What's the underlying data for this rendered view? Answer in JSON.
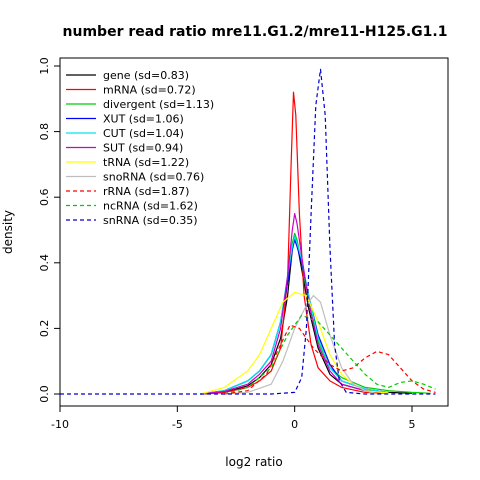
{
  "chart_data": {
    "type": "line",
    "title": "number read ratio mre11.G1.2/mre11-H125.G1.1",
    "xlabel": "log2 ratio",
    "ylabel": "density",
    "xlim": [
      -10,
      6.2
    ],
    "ylim": [
      0,
      1.0
    ],
    "x_ticks": [
      -10,
      -5,
      0,
      5
    ],
    "y_ticks": [
      0.0,
      0.2,
      0.4,
      0.6,
      0.8,
      1.0
    ],
    "grid": false,
    "legend_position": "top-left",
    "series": [
      {
        "name": "gene (sd=0.83)",
        "color": "#000000",
        "dash": "solid",
        "points": [
          [
            -4,
            0
          ],
          [
            -3,
            0.005
          ],
          [
            -2,
            0.025
          ],
          [
            -1.5,
            0.05
          ],
          [
            -1,
            0.09
          ],
          [
            -0.6,
            0.17
          ],
          [
            -0.3,
            0.3
          ],
          [
            -0.1,
            0.44
          ],
          [
            0,
            0.48
          ],
          [
            0.1,
            0.46
          ],
          [
            0.3,
            0.38
          ],
          [
            0.6,
            0.26
          ],
          [
            1,
            0.14
          ],
          [
            1.5,
            0.06
          ],
          [
            2,
            0.03
          ],
          [
            3,
            0.01
          ],
          [
            4,
            0.005
          ],
          [
            5,
            0.002
          ]
        ]
      },
      {
        "name": "mRNA (sd=0.72)",
        "color": "#ff0000",
        "dash": "solid",
        "points": [
          [
            -4,
            0
          ],
          [
            -3,
            0.005
          ],
          [
            -2,
            0.02
          ],
          [
            -1.5,
            0.04
          ],
          [
            -1,
            0.07
          ],
          [
            -0.6,
            0.14
          ],
          [
            -0.3,
            0.35
          ],
          [
            -0.15,
            0.7
          ],
          [
            -0.05,
            0.92
          ],
          [
            0.05,
            0.85
          ],
          [
            0.2,
            0.55
          ],
          [
            0.4,
            0.3
          ],
          [
            0.7,
            0.15
          ],
          [
            1,
            0.08
          ],
          [
            1.5,
            0.04
          ],
          [
            2,
            0.02
          ],
          [
            3,
            0.005
          ],
          [
            4,
            0.002
          ]
        ]
      },
      {
        "name": "divergent (sd=1.13)",
        "color": "#00cd00",
        "dash": "solid",
        "points": [
          [
            -4,
            0
          ],
          [
            -3,
            0.01
          ],
          [
            -2,
            0.04
          ],
          [
            -1.5,
            0.07
          ],
          [
            -1,
            0.12
          ],
          [
            -0.6,
            0.22
          ],
          [
            -0.3,
            0.35
          ],
          [
            -0.1,
            0.46
          ],
          [
            0,
            0.49
          ],
          [
            0.1,
            0.47
          ],
          [
            0.3,
            0.4
          ],
          [
            0.6,
            0.28
          ],
          [
            1,
            0.16
          ],
          [
            1.5,
            0.08
          ],
          [
            2,
            0.05
          ],
          [
            3,
            0.02
          ],
          [
            4,
            0.01
          ],
          [
            5,
            0.005
          ],
          [
            5.8,
            0.002
          ]
        ]
      },
      {
        "name": "XUT (sd=1.06)",
        "color": "#0000ff",
        "dash": "solid",
        "points": [
          [
            -4,
            0
          ],
          [
            -3,
            0.01
          ],
          [
            -2,
            0.04
          ],
          [
            -1.5,
            0.07
          ],
          [
            -1,
            0.12
          ],
          [
            -0.6,
            0.22
          ],
          [
            -0.3,
            0.34
          ],
          [
            -0.1,
            0.44
          ],
          [
            0,
            0.47
          ],
          [
            0.1,
            0.45
          ],
          [
            0.3,
            0.4
          ],
          [
            0.6,
            0.3
          ],
          [
            1,
            0.18
          ],
          [
            1.5,
            0.09
          ],
          [
            2,
            0.04
          ],
          [
            3,
            0.015
          ],
          [
            4,
            0.005
          ]
        ]
      },
      {
        "name": "CUT (sd=1.04)",
        "color": "#00e5ee",
        "dash": "solid",
        "points": [
          [
            -4,
            0
          ],
          [
            -3,
            0.01
          ],
          [
            -2,
            0.04
          ],
          [
            -1.5,
            0.07
          ],
          [
            -1,
            0.12
          ],
          [
            -0.6,
            0.22
          ],
          [
            -0.3,
            0.36
          ],
          [
            -0.1,
            0.45
          ],
          [
            0,
            0.48
          ],
          [
            0.1,
            0.46
          ],
          [
            0.3,
            0.41
          ],
          [
            0.6,
            0.3
          ],
          [
            1,
            0.17
          ],
          [
            1.5,
            0.08
          ],
          [
            2,
            0.04
          ],
          [
            3,
            0.015
          ],
          [
            4,
            0.005
          ]
        ]
      },
      {
        "name": "SUT (sd=0.94)",
        "color": "#cc00cc",
        "dash": "solid",
        "points": [
          [
            -4,
            0
          ],
          [
            -3,
            0.008
          ],
          [
            -2,
            0.03
          ],
          [
            -1.5,
            0.06
          ],
          [
            -1,
            0.1
          ],
          [
            -0.6,
            0.2
          ],
          [
            -0.3,
            0.36
          ],
          [
            -0.1,
            0.5
          ],
          [
            0,
            0.55
          ],
          [
            0.1,
            0.52
          ],
          [
            0.3,
            0.42
          ],
          [
            0.6,
            0.28
          ],
          [
            1,
            0.15
          ],
          [
            1.5,
            0.07
          ],
          [
            2,
            0.03
          ],
          [
            3,
            0.01
          ],
          [
            4,
            0.003
          ]
        ]
      },
      {
        "name": "tRNA (sd=1.22)",
        "color": "#ffff00",
        "dash": "solid",
        "points": [
          [
            -4,
            0
          ],
          [
            -3,
            0.02
          ],
          [
            -2,
            0.07
          ],
          [
            -1.5,
            0.12
          ],
          [
            -1,
            0.2
          ],
          [
            -0.5,
            0.28
          ],
          [
            0,
            0.31
          ],
          [
            0.5,
            0.3
          ],
          [
            1,
            0.22
          ],
          [
            1.5,
            0.12
          ],
          [
            2,
            0.06
          ],
          [
            2.5,
            0.03
          ],
          [
            3,
            0.01
          ],
          [
            4,
            0.003
          ]
        ]
      },
      {
        "name": "snoRNA (sd=0.76)",
        "color": "#bebebe",
        "dash": "solid",
        "points": [
          [
            -3,
            0
          ],
          [
            -2,
            0.005
          ],
          [
            -1,
            0.03
          ],
          [
            -0.5,
            0.1
          ],
          [
            0,
            0.2
          ],
          [
            0.5,
            0.27
          ],
          [
            0.8,
            0.3
          ],
          [
            1.1,
            0.28
          ],
          [
            1.5,
            0.18
          ],
          [
            2,
            0.08
          ],
          [
            2.5,
            0.03
          ],
          [
            3,
            0.01
          ],
          [
            3.5,
            0
          ]
        ]
      },
      {
        "name": "rRNA (sd=1.87)",
        "color": "#ff0000",
        "dash": "dashed",
        "points": [
          [
            -3,
            0
          ],
          [
            -2,
            0.01
          ],
          [
            -1.2,
            0.06
          ],
          [
            -0.6,
            0.15
          ],
          [
            -0.2,
            0.21
          ],
          [
            0.2,
            0.2
          ],
          [
            0.8,
            0.14
          ],
          [
            1.5,
            0.09
          ],
          [
            2,
            0.07
          ],
          [
            2.5,
            0.08
          ],
          [
            3,
            0.11
          ],
          [
            3.5,
            0.13
          ],
          [
            4,
            0.12
          ],
          [
            4.5,
            0.08
          ],
          [
            5,
            0.04
          ],
          [
            5.5,
            0.015
          ],
          [
            6,
            0.005
          ]
        ]
      },
      {
        "name": "ncRNA (sd=1.62)",
        "color": "#00cd00",
        "dash": "dashed",
        "points": [
          [
            -3,
            0
          ],
          [
            -2,
            0.02
          ],
          [
            -1,
            0.08
          ],
          [
            -0.3,
            0.18
          ],
          [
            0.3,
            0.24
          ],
          [
            1,
            0.22
          ],
          [
            1.5,
            0.18
          ],
          [
            2,
            0.14
          ],
          [
            2.5,
            0.1
          ],
          [
            3,
            0.06
          ],
          [
            3.5,
            0.03
          ],
          [
            4,
            0.02
          ],
          [
            4.5,
            0.035
          ],
          [
            5,
            0.04
          ],
          [
            5.5,
            0.03
          ],
          [
            6,
            0.015
          ]
        ]
      },
      {
        "name": "snRNA (sd=0.35)",
        "color": "#0000cd",
        "dash": "dashed",
        "points": [
          [
            -10,
            0
          ],
          [
            -5,
            0
          ],
          [
            -1,
            0
          ],
          [
            0,
            0.005
          ],
          [
            0.3,
            0.05
          ],
          [
            0.5,
            0.2
          ],
          [
            0.7,
            0.55
          ],
          [
            0.9,
            0.88
          ],
          [
            1.1,
            0.99
          ],
          [
            1.3,
            0.85
          ],
          [
            1.5,
            0.45
          ],
          [
            1.7,
            0.15
          ],
          [
            1.9,
            0.04
          ],
          [
            2.2,
            0.005
          ],
          [
            3,
            0
          ],
          [
            6,
            0
          ]
        ]
      }
    ]
  }
}
